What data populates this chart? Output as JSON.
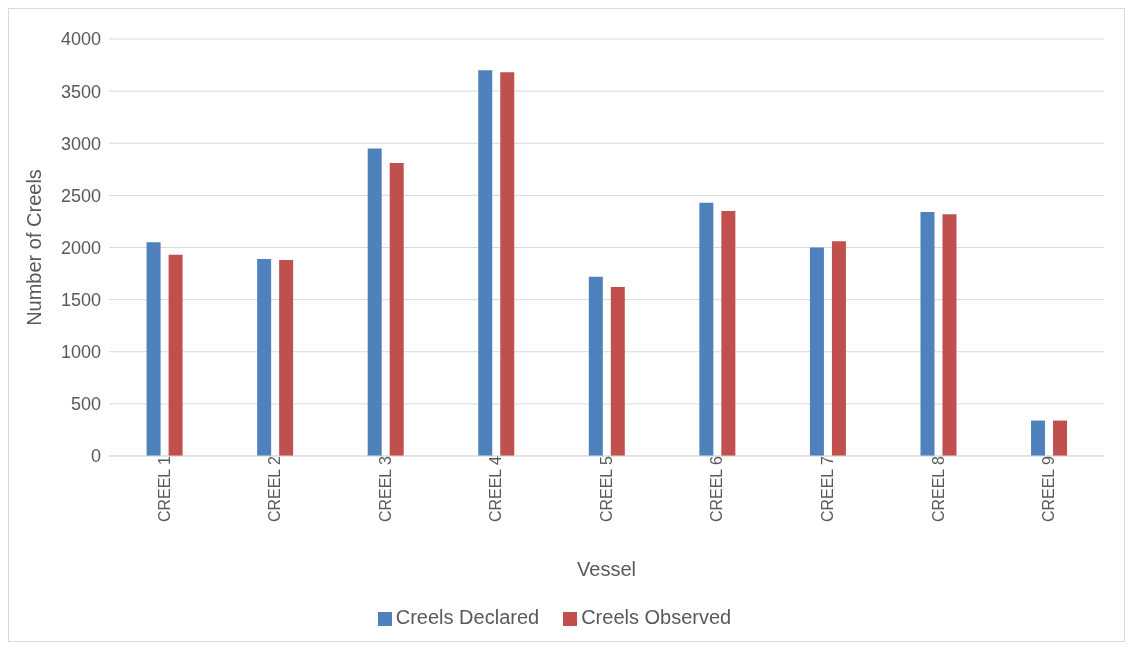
{
  "chart_data": {
    "type": "bar",
    "xlabel": "Vessel",
    "ylabel": "Number of Creels",
    "categories": [
      "CREEL 1",
      "CREEL 2",
      "CREEL 3",
      "CREEL 4",
      "CREEL 5",
      "CREEL 6",
      "CREEL 7",
      "CREEL 8",
      "CREEL 9"
    ],
    "series": [
      {
        "name": "Creels Declared",
        "color": "#4f81bd",
        "values": [
          2050,
          1890,
          2950,
          3700,
          1720,
          2430,
          2000,
          2340,
          340
        ]
      },
      {
        "name": "Creels Observed",
        "color": "#c0504d",
        "values": [
          1930,
          1880,
          2810,
          3680,
          1620,
          2350,
          2060,
          2320,
          340
        ]
      }
    ],
    "ylim": [
      0,
      4000
    ],
    "yticks": [
      0,
      500,
      1000,
      1500,
      2000,
      2500,
      3000,
      3500,
      4000
    ],
    "grid": "y",
    "legend": "bottom"
  }
}
